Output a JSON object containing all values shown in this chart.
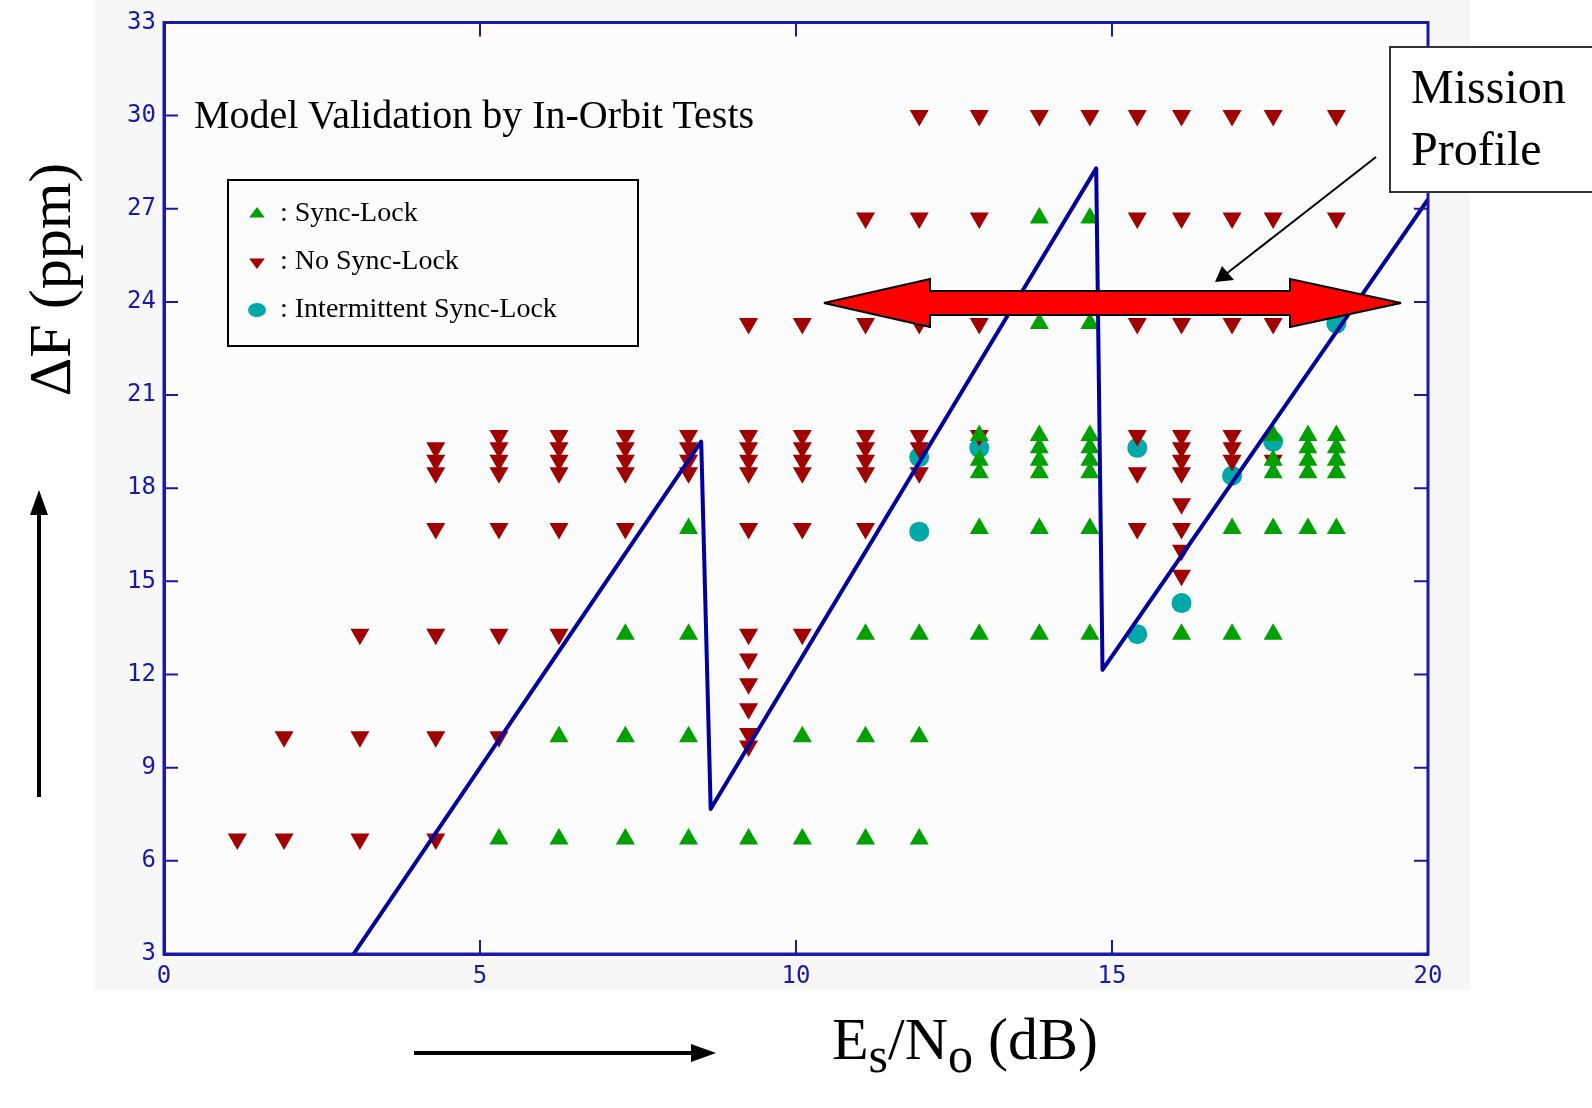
{
  "chart_data": {
    "type": "scatter",
    "xlabel": "E$_{s}$/N$_{o}$ (dB)",
    "ylabel": "ΔF (ppm)",
    "annotations": [
      "Model Validation by In-Orbit Tests",
      "Mission Profile"
    ],
    "xlim": [
      0,
      20
    ],
    "xticks": [
      0,
      5,
      10,
      15,
      20
    ],
    "ylim": [
      3,
      33
    ],
    "yticks": [
      3,
      6,
      9,
      12,
      15,
      18,
      21,
      24,
      27,
      30,
      33
    ],
    "grid": false,
    "legend": "top left",
    "series": [
      {
        "name": ": Sync-Lock",
        "color": "#00a000",
        "marker": "triangle",
        "x": [
          5.3,
          6.25,
          7.3,
          8.3,
          9.25,
          10.1,
          11.1,
          11.95,
          6.25,
          7.3,
          8.3,
          10.1,
          11.1,
          11.95,
          7.3,
          8.3,
          11.1,
          11.95,
          12.9,
          13.85,
          14.65,
          16.1,
          16.9,
          17.55,
          8.3,
          12.9,
          13.85,
          14.65,
          16.9,
          17.55,
          18.1,
          18.55,
          12.9,
          12.9,
          12.9,
          13.85,
          13.85,
          13.85,
          13.85,
          14.65,
          14.65,
          14.65,
          14.65,
          17.55,
          17.55,
          17.55,
          18.1,
          18.1,
          18.1,
          18.1,
          18.55,
          18.55,
          18.55,
          18.55,
          13.85,
          14.65,
          13.85,
          14.65
        ],
        "values": [
          6.7,
          6.7,
          6.7,
          6.7,
          6.7,
          6.7,
          6.7,
          6.7,
          10,
          10,
          10,
          10,
          10,
          10,
          13.3,
          13.3,
          13.3,
          13.3,
          13.3,
          13.3,
          13.3,
          13.3,
          13.3,
          13.3,
          16.7,
          16.7,
          16.7,
          16.7,
          16.7,
          16.7,
          16.7,
          16.7,
          18.5,
          18.9,
          19.7,
          18.5,
          18.9,
          19.3,
          19.7,
          18.5,
          18.9,
          19.3,
          19.7,
          18.5,
          18.9,
          19.7,
          18.5,
          18.9,
          19.3,
          19.7,
          18.5,
          18.9,
          19.3,
          19.7,
          23.3,
          23.3,
          26.7,
          26.7
        ]
      },
      {
        "name": ": No Sync-Lock",
        "color": "#a00000",
        "marker": "triangle-down",
        "x": [
          1.16,
          1.9,
          3.1,
          4.3,
          1.9,
          3.1,
          4.3,
          5.3,
          3.1,
          4.3,
          5.3,
          6.25,
          10.1,
          9.25,
          9.25,
          9.25,
          9.25,
          9.25,
          9.25,
          4.3,
          5.3,
          6.25,
          7.3,
          9.25,
          10.1,
          11.1,
          15.4,
          4.3,
          4.3,
          4.3,
          5.3,
          5.3,
          5.3,
          5.3,
          6.25,
          6.25,
          6.25,
          6.25,
          7.3,
          7.3,
          7.3,
          7.3,
          8.3,
          8.3,
          8.3,
          8.3,
          9.25,
          9.25,
          9.25,
          9.25,
          10.1,
          10.1,
          10.1,
          10.1,
          11.1,
          11.1,
          11.1,
          11.1,
          11.95,
          11.95,
          11.95,
          12.9,
          15.4,
          15.4,
          16.1,
          16.1,
          16.1,
          16.1,
          16.9,
          16.9,
          16.9,
          17.55,
          16.1,
          16.1,
          16.1,
          16.1,
          9.25,
          10.1,
          11.1,
          11.95,
          12.9,
          15.4,
          16.1,
          16.9,
          17.55,
          11.1,
          11.95,
          12.9,
          15.4,
          16.1,
          16.9,
          17.55,
          18.55,
          11.95,
          12.9,
          13.85,
          14.65,
          15.4,
          16.1,
          16.9,
          17.55,
          18.55
        ],
        "values": [
          6.7,
          6.7,
          6.7,
          6.7,
          10,
          10,
          10,
          10,
          13.3,
          13.3,
          13.3,
          13.3,
          13.3,
          13.3,
          12.5,
          11.7,
          10.9,
          10.1,
          9.7,
          16.7,
          16.7,
          16.7,
          16.7,
          16.7,
          16.7,
          16.7,
          16.7,
          18.5,
          18.9,
          19.3,
          18.5,
          18.9,
          19.3,
          19.7,
          18.5,
          18.9,
          19.3,
          19.7,
          18.5,
          18.9,
          19.3,
          19.7,
          18.5,
          18.9,
          19.3,
          19.7,
          18.5,
          18.9,
          19.3,
          19.7,
          18.5,
          18.9,
          19.3,
          19.7,
          18.5,
          18.9,
          19.3,
          19.7,
          18.5,
          19.3,
          19.7,
          19.7,
          18.5,
          19.7,
          18.5,
          18.9,
          19.3,
          19.7,
          18.9,
          19.3,
          19.7,
          18.9,
          17.5,
          16.7,
          16,
          15.2,
          23.3,
          23.3,
          23.3,
          23.3,
          23.3,
          23.3,
          23.3,
          23.3,
          23.3,
          26.7,
          26.7,
          26.7,
          26.7,
          26.7,
          26.7,
          26.7,
          26.7,
          30,
          30,
          30,
          30,
          30,
          30,
          30,
          30,
          30
        ]
      },
      {
        "name": ": Intermittent Sync-Lock",
        "color": "#00a8a8",
        "marker": "circle",
        "x": [
          11.95,
          11.95,
          12.9,
          15.4,
          15.4,
          16.1,
          16.9,
          17.55,
          18.55
        ],
        "values": [
          19,
          16.6,
          19.3,
          19.3,
          13.3,
          14.3,
          18.4,
          19.5,
          23.3
        ]
      },
      {
        "type": "line",
        "color": "#0000a0",
        "marker": "none",
        "x": [
          3,
          8.5,
          8.65,
          14.75,
          14.85,
          20
        ],
        "values": [
          3,
          19.5,
          7.67,
          28.3,
          12.15,
          27.3
        ]
      }
    ]
  }
}
